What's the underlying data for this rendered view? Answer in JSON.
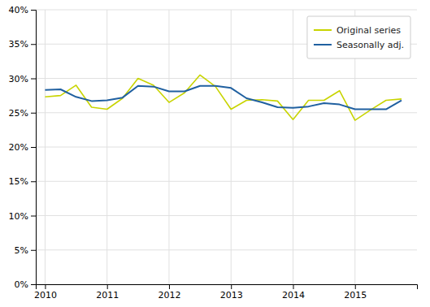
{
  "chart_data": {
    "type": "line",
    "x": [
      2010.0,
      2010.25,
      2010.5,
      2010.75,
      2011.0,
      2011.25,
      2011.5,
      2011.75,
      2012.0,
      2012.25,
      2012.5,
      2012.75,
      2013.0,
      2013.25,
      2013.5,
      2013.75,
      2014.0,
      2014.25,
      2014.5,
      2014.75,
      2015.0,
      2015.25,
      2015.5,
      2015.75
    ],
    "series": [
      {
        "name": "Original series",
        "color": "#c8d400",
        "values": [
          27.3,
          27.5,
          29.0,
          25.8,
          25.5,
          27.1,
          30.0,
          29.0,
          26.5,
          27.9,
          30.5,
          28.8,
          25.5,
          26.8,
          26.9,
          26.7,
          24.0,
          26.8,
          26.8,
          28.2,
          23.9,
          25.4,
          26.8,
          27.0
        ]
      },
      {
        "name": "Seasonally adj.",
        "color": "#2060a0",
        "values": [
          28.3,
          28.4,
          27.3,
          26.7,
          26.8,
          27.2,
          28.9,
          28.8,
          28.1,
          28.1,
          28.9,
          28.9,
          28.6,
          27.1,
          26.5,
          25.8,
          25.7,
          25.9,
          26.4,
          26.2,
          25.5,
          25.5,
          25.5,
          26.8
        ]
      }
    ],
    "xlim": [
      2009.85,
      2016.0
    ],
    "xticks": [
      2010,
      2011,
      2012,
      2013,
      2014,
      2015
    ],
    "ylim": [
      0,
      40
    ],
    "yticks": [
      {
        "value": 0,
        "label": "0%"
      },
      {
        "value": 5,
        "label": "5%"
      },
      {
        "value": 10,
        "label": "10%"
      },
      {
        "value": 15,
        "label": "15%"
      },
      {
        "value": 20,
        "label": "20%"
      },
      {
        "value": 25,
        "label": "25%"
      },
      {
        "value": 30,
        "label": "30%"
      },
      {
        "value": 35,
        "label": "35%"
      },
      {
        "value": 40,
        "label": "40%"
      }
    ],
    "grid": true,
    "legend": "upper right"
  }
}
